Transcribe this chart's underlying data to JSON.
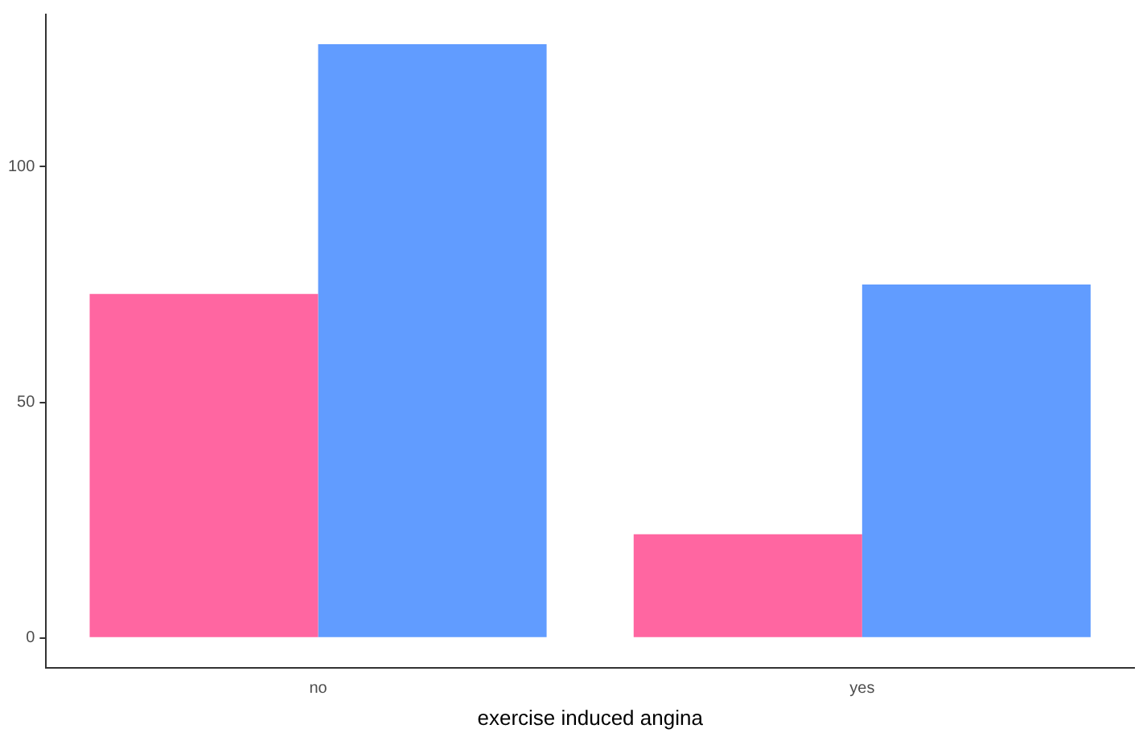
{
  "chart_data": {
    "type": "bar",
    "xlabel": "exercise induced angina",
    "categories": [
      "no",
      "yes"
    ],
    "series": [
      {
        "color": "#ff66a1",
        "values": [
          73,
          22
        ]
      },
      {
        "color": "#619cff",
        "values": [
          126,
          75
        ]
      }
    ],
    "ylim": [
      -6.3,
      132.3
    ],
    "yticks": [
      0,
      50,
      100
    ],
    "grid": false,
    "legend": false
  }
}
